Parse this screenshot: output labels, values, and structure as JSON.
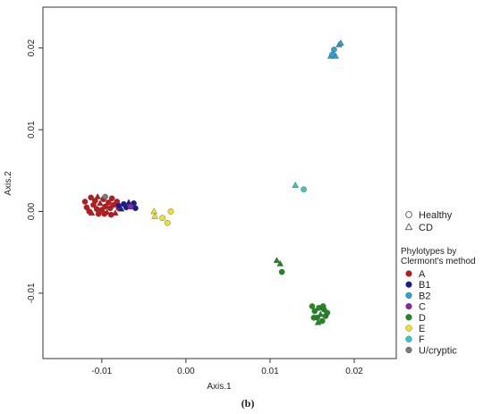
{
  "chart_data": {
    "type": "scatter",
    "xlabel": "Axis.1",
    "ylabel": "Axis.2",
    "caption": "(b)",
    "xlim": [
      -0.017,
      0.025
    ],
    "ylim": [
      -0.018,
      0.025
    ],
    "x_ticks": [
      {
        "value": -0.01,
        "label": "-0.01"
      },
      {
        "value": 0.0,
        "label": "0.00"
      },
      {
        "value": 0.01,
        "label": "0.01"
      },
      {
        "value": 0.02,
        "label": "0.02"
      }
    ],
    "y_ticks": [
      {
        "value": -0.01,
        "label": "-0.01"
      },
      {
        "value": 0.0,
        "label": "0.00"
      },
      {
        "value": 0.01,
        "label": "0.01"
      },
      {
        "value": 0.02,
        "label": "0.02"
      }
    ],
    "shape_legend": [
      {
        "label": "Healthy",
        "shape": "circle"
      },
      {
        "label": "CD",
        "shape": "triangle"
      }
    ],
    "legend_title_lines": [
      "Phylotypes by",
      "Clermont's method"
    ],
    "legend_placement": "right",
    "grid": false,
    "series": [
      {
        "name": "A",
        "color": "#c0171a",
        "points": [
          {
            "x": -0.012,
            "y": 0.0012,
            "shape": "circle"
          },
          {
            "x": -0.0118,
            "y": 0.0005,
            "shape": "circle"
          },
          {
            "x": -0.0115,
            "y": 0.0,
            "shape": "circle"
          },
          {
            "x": -0.0112,
            "y": -0.0002,
            "shape": "triangle"
          },
          {
            "x": -0.011,
            "y": 0.0008,
            "shape": "circle"
          },
          {
            "x": -0.0108,
            "y": 0.0013,
            "shape": "circle"
          },
          {
            "x": -0.0106,
            "y": 0.0003,
            "shape": "circle"
          },
          {
            "x": -0.0104,
            "y": -0.0003,
            "shape": "circle"
          },
          {
            "x": -0.0102,
            "y": 0.001,
            "shape": "triangle"
          },
          {
            "x": -0.01,
            "y": 0.0002,
            "shape": "circle"
          },
          {
            "x": -0.0098,
            "y": 0.0015,
            "shape": "circle"
          },
          {
            "x": -0.0096,
            "y": 0.0006,
            "shape": "circle"
          },
          {
            "x": -0.0094,
            "y": -0.0001,
            "shape": "triangle"
          },
          {
            "x": -0.0092,
            "y": 0.0011,
            "shape": "circle"
          },
          {
            "x": -0.009,
            "y": 0.0004,
            "shape": "circle"
          },
          {
            "x": -0.0088,
            "y": 0.0016,
            "shape": "circle"
          },
          {
            "x": -0.0086,
            "y": 0.0008,
            "shape": "circle"
          },
          {
            "x": -0.0084,
            "y": -0.0002,
            "shape": "triangle"
          },
          {
            "x": -0.0082,
            "y": 0.0012,
            "shape": "circle"
          },
          {
            "x": -0.008,
            "y": 0.0004,
            "shape": "circle"
          },
          {
            "x": -0.0105,
            "y": 0.0018,
            "shape": "triangle"
          },
          {
            "x": -0.0113,
            "y": 0.0017,
            "shape": "circle"
          },
          {
            "x": -0.0097,
            "y": -0.0003,
            "shape": "circle"
          },
          {
            "x": -0.0089,
            "y": -0.0004,
            "shape": "circle"
          }
        ]
      },
      {
        "name": "B1",
        "color": "#1a1a96",
        "points": [
          {
            "x": -0.008,
            "y": 0.0007,
            "shape": "circle"
          },
          {
            "x": -0.0077,
            "y": 0.0003,
            "shape": "triangle"
          },
          {
            "x": -0.0074,
            "y": 0.0009,
            "shape": "circle"
          },
          {
            "x": -0.0071,
            "y": 0.0005,
            "shape": "circle"
          },
          {
            "x": -0.0068,
            "y": 0.0011,
            "shape": "triangle"
          },
          {
            "x": -0.0065,
            "y": 0.0006,
            "shape": "circle"
          },
          {
            "x": -0.0062,
            "y": 0.001,
            "shape": "circle"
          },
          {
            "x": -0.006,
            "y": 0.0004,
            "shape": "circle"
          }
        ]
      },
      {
        "name": "B2",
        "color": "#2aa3d6",
        "points": [
          {
            "x": 0.0172,
            "y": 0.019,
            "shape": "triangle"
          },
          {
            "x": 0.0176,
            "y": 0.0198,
            "shape": "circle"
          },
          {
            "x": 0.0178,
            "y": 0.019,
            "shape": "triangle"
          },
          {
            "x": 0.0182,
            "y": 0.0204,
            "shape": "triangle"
          },
          {
            "x": 0.0184,
            "y": 0.0206,
            "shape": "triangle"
          },
          {
            "x": 0.0174,
            "y": 0.0192,
            "shape": "circle"
          }
        ]
      },
      {
        "name": "C",
        "color": "#8e24aa",
        "points": [
          {
            "x": -0.0066,
            "y": 0.0006,
            "shape": "circle"
          }
        ]
      },
      {
        "name": "D",
        "color": "#1f8a1f",
        "points": [
          {
            "x": 0.0108,
            "y": -0.006,
            "shape": "triangle"
          },
          {
            "x": 0.0112,
            "y": -0.0064,
            "shape": "triangle"
          },
          {
            "x": 0.0114,
            "y": -0.0074,
            "shape": "circle"
          },
          {
            "x": 0.015,
            "y": -0.0116,
            "shape": "circle"
          },
          {
            "x": 0.0153,
            "y": -0.0122,
            "shape": "circle"
          },
          {
            "x": 0.0156,
            "y": -0.013,
            "shape": "circle"
          },
          {
            "x": 0.0158,
            "y": -0.0118,
            "shape": "circle"
          },
          {
            "x": 0.016,
            "y": -0.0126,
            "shape": "triangle"
          },
          {
            "x": 0.0162,
            "y": -0.0134,
            "shape": "circle"
          },
          {
            "x": 0.0164,
            "y": -0.012,
            "shape": "circle"
          },
          {
            "x": 0.0166,
            "y": -0.0128,
            "shape": "circle"
          },
          {
            "x": 0.0168,
            "y": -0.0124,
            "shape": "circle"
          },
          {
            "x": 0.0152,
            "y": -0.013,
            "shape": "circle"
          },
          {
            "x": 0.0157,
            "y": -0.0136,
            "shape": "triangle"
          },
          {
            "x": 0.0163,
            "y": -0.0116,
            "shape": "circle"
          }
        ]
      },
      {
        "name": "E",
        "color": "#f2e21b",
        "points": [
          {
            "x": -0.0038,
            "y": 0.0,
            "shape": "triangle"
          },
          {
            "x": -0.0037,
            "y": -0.0006,
            "shape": "triangle"
          },
          {
            "x": -0.0028,
            "y": -0.0008,
            "shape": "circle"
          },
          {
            "x": -0.0022,
            "y": -0.0014,
            "shape": "circle"
          },
          {
            "x": -0.0018,
            "y": 0.0,
            "shape": "circle"
          }
        ]
      },
      {
        "name": "F",
        "color": "#34c8c8",
        "points": [
          {
            "x": 0.013,
            "y": 0.0032,
            "shape": "triangle"
          },
          {
            "x": 0.014,
            "y": 0.0027,
            "shape": "circle"
          }
        ]
      },
      {
        "name": "U/cryptic",
        "color": "#7a7a7a",
        "points": [
          {
            "x": -0.0096,
            "y": 0.0018,
            "shape": "circle"
          }
        ]
      }
    ]
  }
}
